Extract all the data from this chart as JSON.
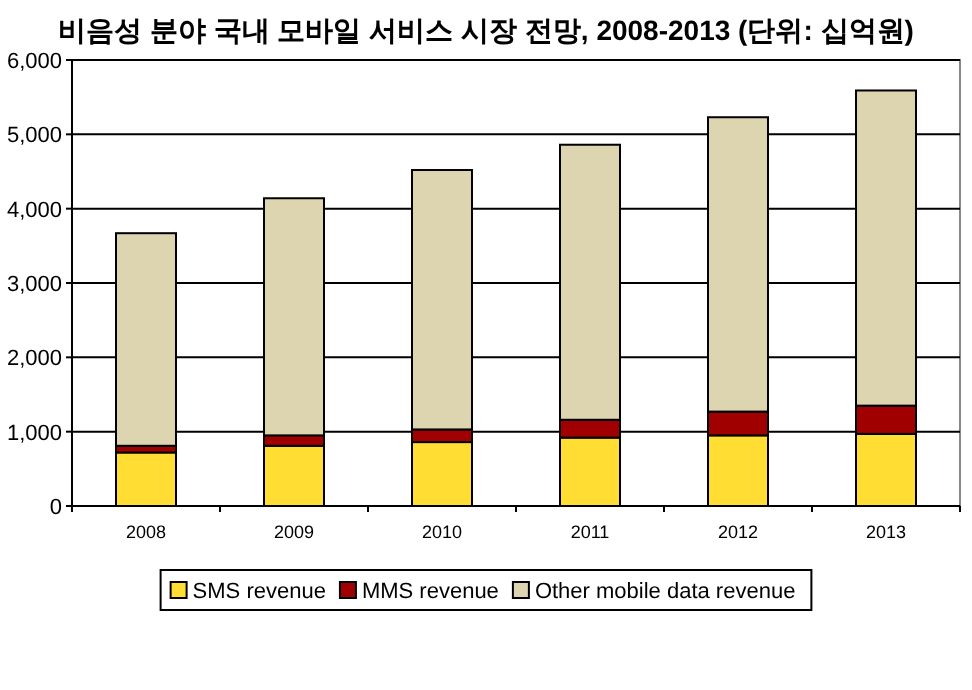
{
  "chart_data": {
    "type": "bar",
    "title": "비음성 분야 국내 모바일 서비스 시장 전망, 2008-2013 (단위: 십억원)",
    "stacked": true,
    "categories": [
      "2008",
      "2009",
      "2010",
      "2011",
      "2012",
      "2013"
    ],
    "series": [
      {
        "name": "SMS revenue",
        "color": "#ffdd33",
        "values": [
          720,
          810,
          860,
          920,
          950,
          970
        ]
      },
      {
        "name": "MMS revenue",
        "color": "#a00000",
        "values": [
          90,
          140,
          170,
          240,
          320,
          380
        ]
      },
      {
        "name": "Other mobile data revenue",
        "color": "#ddd5b0",
        "values": [
          2860,
          3190,
          3490,
          3700,
          3960,
          4240
        ]
      }
    ],
    "ylim": [
      0,
      6000
    ],
    "yticks": [
      {
        "value": 0,
        "label": "0"
      },
      {
        "value": 1000,
        "label": "1,000"
      },
      {
        "value": 2000,
        "label": "2,000"
      },
      {
        "value": 3000,
        "label": "3,000"
      },
      {
        "value": 4000,
        "label": "4,000"
      },
      {
        "value": 5000,
        "label": "5,000"
      },
      {
        "value": 6000,
        "label": "6,000"
      }
    ],
    "grid": "y",
    "legend": "bottom"
  }
}
